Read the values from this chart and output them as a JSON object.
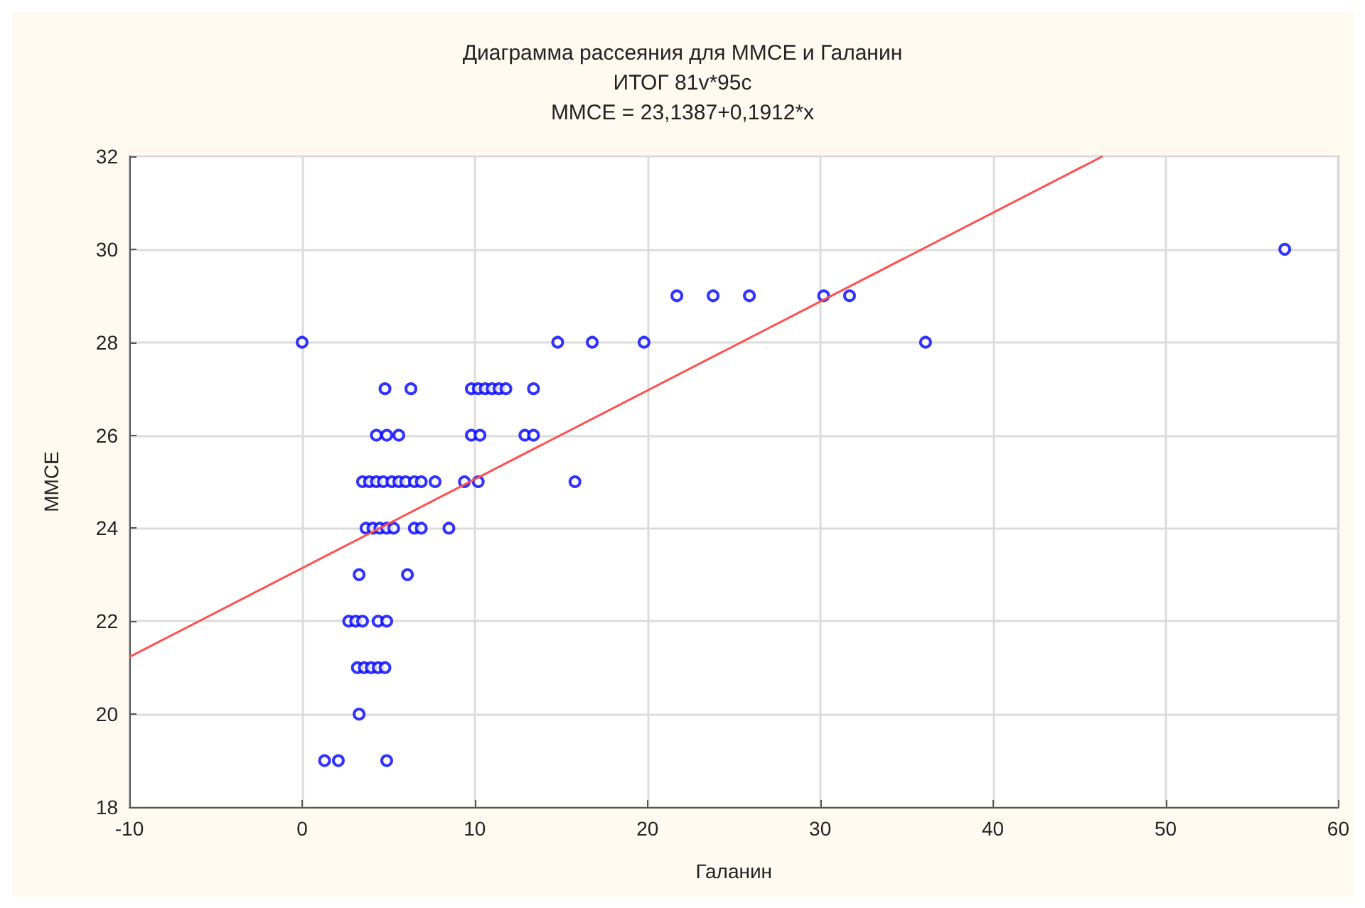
{
  "chart_data": {
    "type": "scatter",
    "title": "Диаграмма рассеяния для MMCE и Галанин",
    "subtitle": "ИТОГ 81v*95c",
    "annotations": [
      "MMCE = 23,1387+0,1912*x"
    ],
    "xlabel": "Галанин",
    "ylabel": "MMCE",
    "xlim": [
      -10,
      60
    ],
    "xticks": [
      -10,
      0,
      10,
      20,
      30,
      40,
      50,
      60
    ],
    "ylim": [
      18,
      32
    ],
    "yticks": [
      18,
      20,
      22,
      24,
      26,
      28,
      30,
      32
    ],
    "grid": true,
    "marker": "circle",
    "series": [
      {
        "color": "#0000ff",
        "x": [
          0,
          14.8,
          16.8,
          19.8,
          36.1,
          21.7,
          23.8,
          25.9,
          30.2,
          31.7,
          56.9,
          15.8,
          4.8,
          6.3,
          9.8,
          10.2,
          10.6,
          11.0,
          11.4,
          11.8,
          13.4,
          4.3,
          4.9,
          5.6,
          9.8,
          10.3,
          12.9,
          13.4,
          3.5,
          3.9,
          4.3,
          4.7,
          5.2,
          5.6,
          6.0,
          6.5,
          6.9,
          7.7,
          9.4,
          10.2,
          3.7,
          4.1,
          4.5,
          4.9,
          5.3,
          6.5,
          6.9,
          8.5,
          3.3,
          6.1,
          2.7,
          3.1,
          3.5,
          4.4,
          4.9,
          3.2,
          3.6,
          4.0,
          4.4,
          4.8,
          3.3,
          1.3,
          2.1,
          4.9
        ],
        "values": [
          28,
          28,
          28,
          28,
          28,
          29,
          29,
          29,
          29,
          29,
          30,
          25,
          27,
          27,
          27,
          27,
          27,
          27,
          27,
          27,
          27,
          26,
          26,
          26,
          26,
          26,
          26,
          26,
          25,
          25,
          25,
          25,
          25,
          25,
          25,
          25,
          25,
          25,
          25,
          25,
          24,
          24,
          24,
          24,
          24,
          24,
          24,
          24,
          23,
          23,
          22,
          22,
          22,
          22,
          22,
          21,
          21,
          21,
          21,
          21,
          20,
          19,
          19,
          19
        ]
      },
      {
        "type": "line",
        "color": "#ff5050",
        "marker": "none",
        "x": [
          -10,
          46.35
        ],
        "values": [
          21.23,
          32
        ]
      }
    ]
  }
}
